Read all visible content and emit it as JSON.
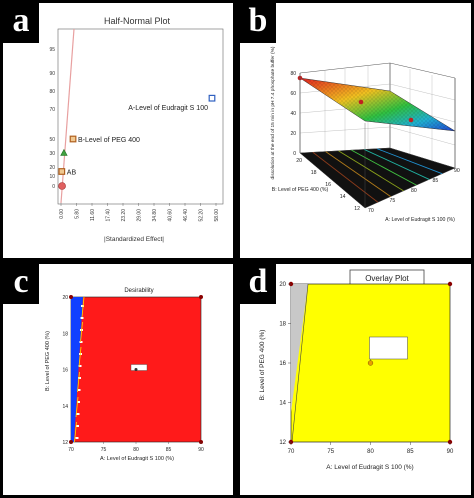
{
  "panels": {
    "a": {
      "label": "a"
    },
    "b": {
      "label": "b"
    },
    "c": {
      "label": "c"
    },
    "d": {
      "label": "d"
    }
  },
  "chart_data": [
    {
      "panel": "a",
      "type": "scatter",
      "title": "Half-Normal Plot",
      "xlabel": "|Standardized Effect|",
      "ylabel": "",
      "xlim": [
        0,
        58
      ],
      "x_ticks": [
        "0.00",
        "5.80",
        "11.60",
        "17.40",
        "23.20",
        "29.00",
        "34.80",
        "40.60",
        "46.40",
        "52.20",
        "58.00"
      ],
      "y_ticks": [
        "0",
        "10",
        "20",
        "30",
        "50",
        "70",
        "80",
        "90",
        "95"
      ],
      "points": [
        {
          "x": 0.4,
          "y": 0,
          "label": ""
        },
        {
          "x": 0.3,
          "y": 15,
          "label": "AB"
        },
        {
          "x": 1.1,
          "y": 30,
          "label": ""
        },
        {
          "x": 4.5,
          "y": 50,
          "label": "B-Level of PEG 400"
        },
        {
          "x": 56.5,
          "y": 76,
          "label": "A-Level of Eudragit S 100"
        }
      ],
      "colors": {
        "line": "#e8a0a0",
        "positive": "#c8882e",
        "negative": "#3060c0",
        "error": "#e05050"
      }
    },
    {
      "panel": "b",
      "type": "surface",
      "zlabel": "dissolution at the end of 15 min in pH 7.4 phosphate buffer (%)",
      "xlabel": "A: Level of Eudragit S 100 (%)",
      "ylabel": "B: Level of PEG 400 (%)",
      "x_ticks": [
        "70",
        "75",
        "80",
        "85",
        "90"
      ],
      "y_ticks": [
        "12",
        "14",
        "16",
        "18",
        "20"
      ],
      "z_ticks": [
        "0",
        "20",
        "40",
        "60",
        "80"
      ],
      "zlim": [
        0,
        80
      ]
    },
    {
      "panel": "c",
      "type": "heatmap",
      "title": "Desirability",
      "xlabel": "A: Level of Eudragit S 100 (%)",
      "ylabel": "B: Level of PEG 400 (%)",
      "x_ticks": [
        "70",
        "75",
        "80",
        "85",
        "90"
      ],
      "y_ticks": [
        "12",
        "14",
        "16",
        "18",
        "20"
      ],
      "xlim": [
        70,
        90
      ],
      "ylim": [
        12,
        20
      ],
      "flag": {
        "x": 80,
        "y": 16
      },
      "colors": {
        "fill": "#ff1a1a",
        "edge": "#1040ff"
      }
    },
    {
      "panel": "d",
      "type": "area",
      "title": "Overlay Plot",
      "xlabel": "A: Level of Eudragit S 100 (%)",
      "ylabel": "B: Level of PEG 400 (%)",
      "x_ticks": [
        "70",
        "75",
        "80",
        "85",
        "90"
      ],
      "y_ticks": [
        "12",
        "14",
        "16",
        "18",
        "20"
      ],
      "xlim": [
        70,
        90
      ],
      "ylim": [
        12,
        20
      ],
      "flag": {
        "x": 80,
        "y": 16
      },
      "colors": {
        "fill": "#ffff00",
        "excluded": "#c8c8c8"
      }
    }
  ]
}
